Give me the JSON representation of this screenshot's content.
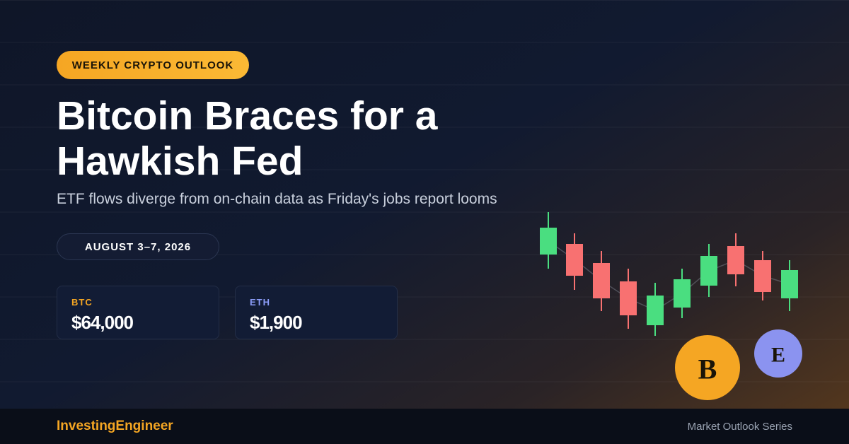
{
  "badge": "WEEKLY CRYPTO OUTLOOK",
  "headline": {
    "lines": [
      "Bitcoin Braces for a",
      "Hawkish Fed"
    ]
  },
  "subtitle": "ETF flows diverge from on-chain data as Friday's jobs report looms",
  "date": "AUGUST 3–7, 2026",
  "prices": [
    {
      "label": "BTC",
      "value": "$64,000"
    },
    {
      "label": "ETH",
      "value": "$1,900"
    }
  ],
  "coins": [
    "B",
    "E"
  ],
  "footer": {
    "brand": "InvestingEngineer",
    "series": "Market Outlook Series"
  }
}
